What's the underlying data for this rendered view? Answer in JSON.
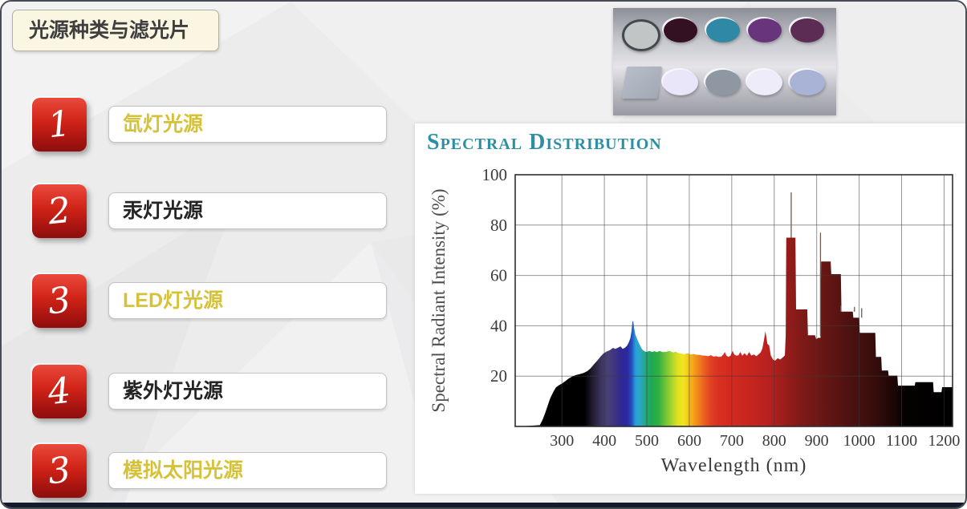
{
  "slide": {
    "title": "光源种类与滤光片",
    "items": [
      {
        "number": "1",
        "label": "氙灯光源",
        "label_color": "#d5c238"
      },
      {
        "number": "2",
        "label": "汞灯光源",
        "label_color": "#242424"
      },
      {
        "number": "3",
        "label": "LED灯光源",
        "label_color": "#d5c238"
      },
      {
        "number": "4",
        "label": "紫外灯光源",
        "label_color": "#242424"
      },
      {
        "number": "3",
        "label": "模拟太阳光源",
        "label_color": "#d5c238"
      }
    ],
    "accent_red": "#c01d15",
    "bottom_bar_color": "#161b2b",
    "background_color": "#ececec",
    "title_box_color": "#fbf6e2"
  },
  "filters_photo": {
    "row1": [
      {
        "shape": "circle",
        "name": "neutral-gray-filter",
        "color": "#c2c5c6",
        "ring": "#44494e"
      },
      {
        "shape": "circle",
        "name": "dark-maroon-filter",
        "color": "#331022"
      },
      {
        "shape": "circle",
        "name": "teal-filter",
        "color": "#2f89a6"
      },
      {
        "shape": "circle",
        "name": "purple-filter",
        "color": "#68357d"
      },
      {
        "shape": "circle",
        "name": "plum-filter",
        "color": "#5c2c55"
      }
    ],
    "row2": [
      {
        "shape": "square",
        "name": "square-glass-filter",
        "color": "#a3a9b4"
      },
      {
        "shape": "circle",
        "name": "pale-lavender-filter",
        "color": "#e8e6f8"
      },
      {
        "shape": "circle",
        "name": "gray-blue-filter",
        "color": "#8e97a2"
      },
      {
        "shape": "circle",
        "name": "near-white-filter",
        "color": "#efecfa"
      },
      {
        "shape": "circle",
        "name": "periwinkle-filter",
        "color": "#a9b3d6"
      }
    ]
  },
  "chart_data": {
    "type": "area",
    "title": "Spectral Distribution",
    "title_color": "#2e8fa4",
    "xlabel": "Wavelength (nm)",
    "ylabel": "Spectral Radiant Intensity (%)",
    "xlim": [
      190,
      1220
    ],
    "ylim": [
      0,
      100
    ],
    "xticks": [
      300,
      400,
      500,
      600,
      700,
      800,
      900,
      1000,
      1100,
      1200
    ],
    "yticks": [
      20,
      40,
      60,
      80,
      100
    ],
    "grid": true,
    "points": [
      [
        200,
        0
      ],
      [
        248,
        0.5
      ],
      [
        254,
        2.5
      ],
      [
        260,
        5
      ],
      [
        266,
        8
      ],
      [
        272,
        11
      ],
      [
        279,
        13.5
      ],
      [
        286,
        15.5
      ],
      [
        294,
        16.5
      ],
      [
        300,
        17
      ],
      [
        308,
        18
      ],
      [
        316,
        19
      ],
      [
        324,
        19.8
      ],
      [
        333,
        20.4
      ],
      [
        342,
        20.8
      ],
      [
        352,
        21.3
      ],
      [
        360,
        22
      ],
      [
        368,
        23.2
      ],
      [
        376,
        24.8
      ],
      [
        384,
        26.3
      ],
      [
        391,
        27.8
      ],
      [
        398,
        29
      ],
      [
        406,
        29.8
      ],
      [
        413,
        30.3
      ],
      [
        420,
        31.2
      ],
      [
        426,
        30.8
      ],
      [
        432,
        31.3
      ],
      [
        438,
        31.8
      ],
      [
        443,
        30.8
      ],
      [
        448,
        31.2
      ],
      [
        453,
        32
      ],
      [
        457,
        33.2
      ],
      [
        461,
        35
      ],
      [
        464,
        38
      ],
      [
        466,
        41.5
      ],
      [
        468,
        42
      ],
      [
        470,
        39
      ],
      [
        473,
        36.5
      ],
      [
        477,
        34.8
      ],
      [
        481,
        33.2
      ],
      [
        485,
        31.8
      ],
      [
        489,
        30.6
      ],
      [
        494,
        29.9
      ],
      [
        500,
        29.6
      ],
      [
        506,
        30
      ],
      [
        512,
        29.6
      ],
      [
        518,
        29.9
      ],
      [
        524,
        29.5
      ],
      [
        530,
        30
      ],
      [
        538,
        29.5
      ],
      [
        546,
        29.7
      ],
      [
        554,
        30
      ],
      [
        561,
        29.4
      ],
      [
        568,
        29.7
      ],
      [
        575,
        29.1
      ],
      [
        582,
        28.9
      ],
      [
        589,
        28.7
      ],
      [
        596,
        29.1
      ],
      [
        603,
        28.6
      ],
      [
        610,
        28.8
      ],
      [
        617,
        28.5
      ],
      [
        624,
        28.4
      ],
      [
        631,
        28.2
      ],
      [
        638,
        28.1
      ],
      [
        645,
        27.9
      ],
      [
        651,
        28.3
      ],
      [
        657,
        27.7
      ],
      [
        663,
        27.9
      ],
      [
        669,
        27.6
      ],
      [
        675,
        27.7
      ],
      [
        680,
        28.6
      ],
      [
        684,
        29.6
      ],
      [
        687,
        28.2
      ],
      [
        692,
        27.6
      ],
      [
        697,
        28.1
      ],
      [
        702,
        30
      ],
      [
        706,
        28.6
      ],
      [
        711,
        28.1
      ],
      [
        716,
        28.3
      ],
      [
        720,
        29.6
      ],
      [
        725,
        28.1
      ],
      [
        730,
        29.1
      ],
      [
        736,
        28.1
      ],
      [
        741,
        29.6
      ],
      [
        746,
        28.2
      ],
      [
        752,
        28.6
      ],
      [
        758,
        27.9
      ],
      [
        764,
        28.8
      ],
      [
        768,
        29.4
      ],
      [
        772,
        31
      ],
      [
        776,
        34.5
      ],
      [
        779,
        37.8
      ],
      [
        781,
        36
      ],
      [
        784,
        32.8
      ],
      [
        788,
        32.2
      ],
      [
        792,
        28.2
      ],
      [
        797,
        26.6
      ],
      [
        802,
        26.1
      ],
      [
        808,
        27.1
      ],
      [
        814,
        26.6
      ],
      [
        820,
        27.4
      ],
      [
        825,
        28.2
      ],
      [
        827,
        36
      ],
      [
        828.5,
        75
      ],
      [
        850,
        75
      ],
      [
        851.5,
        46.5
      ],
      [
        878,
        46.5
      ],
      [
        879.5,
        36.2
      ],
      [
        896,
        36.2
      ],
      [
        899,
        34.6
      ],
      [
        903,
        35.2
      ],
      [
        909,
        35.2
      ],
      [
        910.5,
        65.5
      ],
      [
        933,
        65.5
      ],
      [
        934.5,
        60.5
      ],
      [
        957,
        60.5
      ],
      [
        958.5,
        45.6
      ],
      [
        985,
        45.6
      ],
      [
        986.5,
        43.2
      ],
      [
        1000,
        43.2
      ],
      [
        1001.5,
        37.2
      ],
      [
        1038,
        37.2
      ],
      [
        1039.5,
        27.6
      ],
      [
        1052,
        27.6
      ],
      [
        1053.5,
        22.2
      ],
      [
        1068,
        22.2
      ],
      [
        1069.5,
        20.2
      ],
      [
        1090,
        20.2
      ],
      [
        1091.5,
        16.2
      ],
      [
        1131,
        16.2
      ],
      [
        1132.5,
        17.6
      ],
      [
        1174,
        17.6
      ],
      [
        1175.5,
        13.6
      ],
      [
        1194,
        13.6
      ],
      [
        1195.5,
        15.6
      ],
      [
        1220,
        15.6
      ],
      [
        1220,
        0
      ]
    ],
    "spikes": [
      [
        840,
        93,
        75
      ],
      [
        909,
        77,
        36
      ],
      [
        957,
        48,
        45.6
      ],
      [
        989,
        47.5,
        45.6
      ],
      [
        1006,
        47,
        43.2
      ]
    ],
    "spectrum_color_stops": [
      [
        190,
        "#000000"
      ],
      [
        345,
        "#000000"
      ],
      [
        365,
        "#241d33"
      ],
      [
        385,
        "#3d3560"
      ],
      [
        400,
        "#474073"
      ],
      [
        418,
        "#3e3385"
      ],
      [
        432,
        "#2f2694"
      ],
      [
        448,
        "#2b2aa4"
      ],
      [
        458,
        "#2457c0"
      ],
      [
        466,
        "#28a0d8"
      ],
      [
        474,
        "#2ba4cf"
      ],
      [
        483,
        "#2aa7a4"
      ],
      [
        492,
        "#23a876"
      ],
      [
        505,
        "#1fa94f"
      ],
      [
        520,
        "#2fb043"
      ],
      [
        538,
        "#71c436"
      ],
      [
        553,
        "#abd42c"
      ],
      [
        566,
        "#dfe022"
      ],
      [
        580,
        "#f3e51e"
      ],
      [
        592,
        "#f6c51c"
      ],
      [
        604,
        "#f5a01b"
      ],
      [
        617,
        "#f0801d"
      ],
      [
        630,
        "#e95e20"
      ],
      [
        645,
        "#e14122"
      ],
      [
        662,
        "#da3122"
      ],
      [
        685,
        "#d42b20"
      ],
      [
        715,
        "#cc2720"
      ],
      [
        745,
        "#c4241e"
      ],
      [
        778,
        "#ba211f"
      ],
      [
        800,
        "#ab1f1d"
      ],
      [
        830,
        "#931c1a"
      ],
      [
        860,
        "#801a18"
      ],
      [
        895,
        "#701816"
      ],
      [
        935,
        "#5e1513"
      ],
      [
        975,
        "#4d1210"
      ],
      [
        1015,
        "#3d0f0d"
      ],
      [
        1055,
        "#2b0a09"
      ],
      [
        1085,
        "#190605"
      ],
      [
        1105,
        "#050101"
      ],
      [
        1220,
        "#000000"
      ]
    ]
  }
}
